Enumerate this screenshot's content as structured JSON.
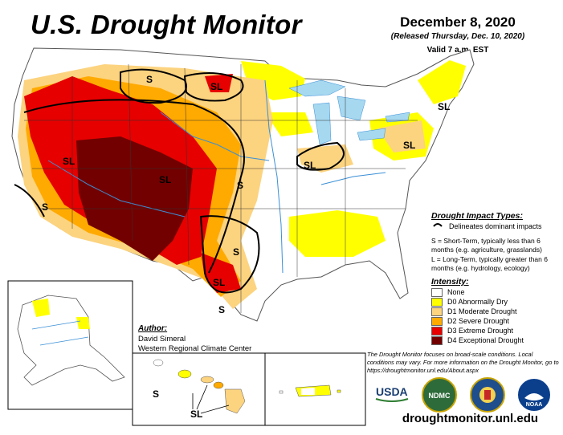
{
  "title": "U.S. Drought Monitor",
  "date": "December 8, 2020",
  "released": "(Released Thursday, Dec. 10, 2020)",
  "valid": "Valid 7 a.m. EST",
  "impact_types": {
    "title": "Drought Impact Types:",
    "delineates": "Delineates dominant impacts",
    "short_term": "S = Short-Term, typically less than 6 months (e.g. agriculture, grasslands)",
    "long_term": "L = Long-Term, typically greater than 6 months (e.g. hydrology, ecology)"
  },
  "intensity": {
    "title": "Intensity:",
    "categories": [
      {
        "label": "None",
        "color": "#ffffff"
      },
      {
        "label": "D0 Abnormally Dry",
        "color": "#ffff00"
      },
      {
        "label": "D1 Moderate Drought",
        "color": "#fcd37f"
      },
      {
        "label": "D2 Severe Drought",
        "color": "#ffaa00"
      },
      {
        "label": "D3 Extreme Drought",
        "color": "#e60000"
      },
      {
        "label": "D4 Exceptional Drought",
        "color": "#730000"
      }
    ]
  },
  "author": {
    "title": "Author:",
    "name": "David Simeral",
    "org": "Western Regional Climate Center"
  },
  "disclaimer": "The Drought Monitor focuses on broad-scale conditions. Local conditions may vary. For more information on the Drought Monitor, go to https://droughtmonitor.unl.edu/About.aspx",
  "url": "droughtmonitor.unl.edu",
  "map_labels": {
    "s": "S",
    "sl": "SL"
  },
  "logos": [
    "USDA",
    "NDMC",
    "DOC",
    "NOAA"
  ]
}
